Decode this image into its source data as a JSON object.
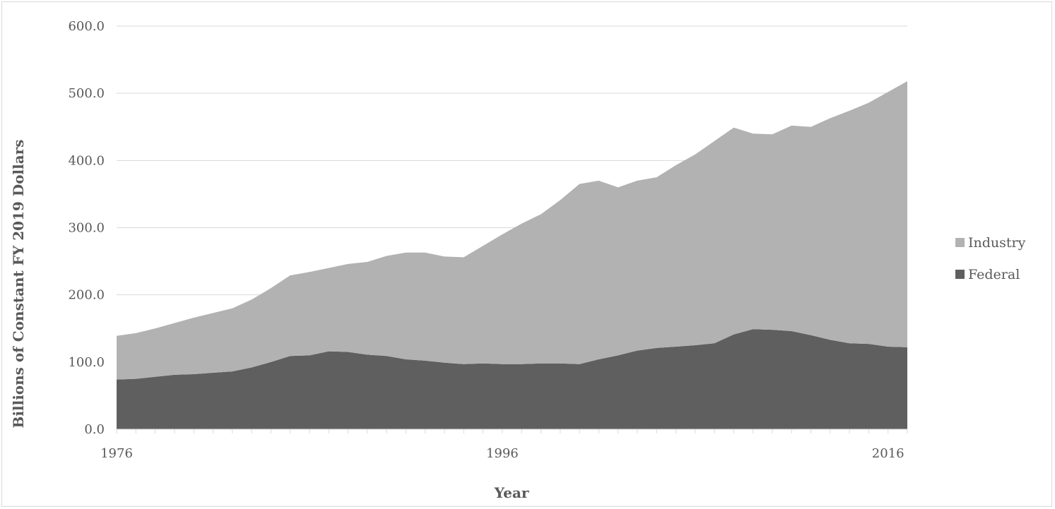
{
  "chart_data": {
    "type": "area",
    "stacked": true,
    "xlabel": "Year",
    "ylabel": "Billions of Constant FY 2019 Dollars",
    "ylim": [
      0,
      600
    ],
    "yticks": [
      "0.0",
      "100.0",
      "200.0",
      "300.0",
      "400.0",
      "500.0",
      "600.0"
    ],
    "xticks": [
      "1976",
      "1996",
      "2016"
    ],
    "grid": "horizontal",
    "legend_position": "right",
    "x": [
      1976,
      1977,
      1978,
      1979,
      1980,
      1981,
      1982,
      1983,
      1984,
      1985,
      1986,
      1987,
      1988,
      1989,
      1990,
      1991,
      1992,
      1993,
      1994,
      1995,
      1996,
      1997,
      1998,
      1999,
      2000,
      2001,
      2002,
      2003,
      2004,
      2005,
      2006,
      2007,
      2008,
      2009,
      2010,
      2011,
      2012,
      2013,
      2014,
      2015,
      2016,
      2017
    ],
    "series": [
      {
        "name": "Federal",
        "color": "#5f5f5f",
        "values": [
          74,
          75,
          78,
          81,
          82,
          84,
          86,
          92,
          100,
          109,
          110,
          116,
          115,
          111,
          109,
          104,
          102,
          99,
          97,
          98,
          97,
          97,
          98,
          98,
          97,
          104,
          110,
          117,
          121,
          123,
          125,
          128,
          141,
          149,
          148,
          146,
          140,
          133,
          128,
          127,
          123,
          122
        ]
      },
      {
        "name": "Industry",
        "color": "#b2b2b2",
        "values": [
          65,
          68,
          72,
          77,
          84,
          89,
          94,
          101,
          110,
          120,
          124,
          124,
          131,
          138,
          149,
          159,
          161,
          158,
          159,
          175,
          193,
          209,
          222,
          243,
          268,
          266,
          250,
          253,
          254,
          270,
          284,
          301,
          308,
          291,
          291,
          306,
          310,
          330,
          346,
          359,
          379,
          396
        ]
      }
    ]
  }
}
